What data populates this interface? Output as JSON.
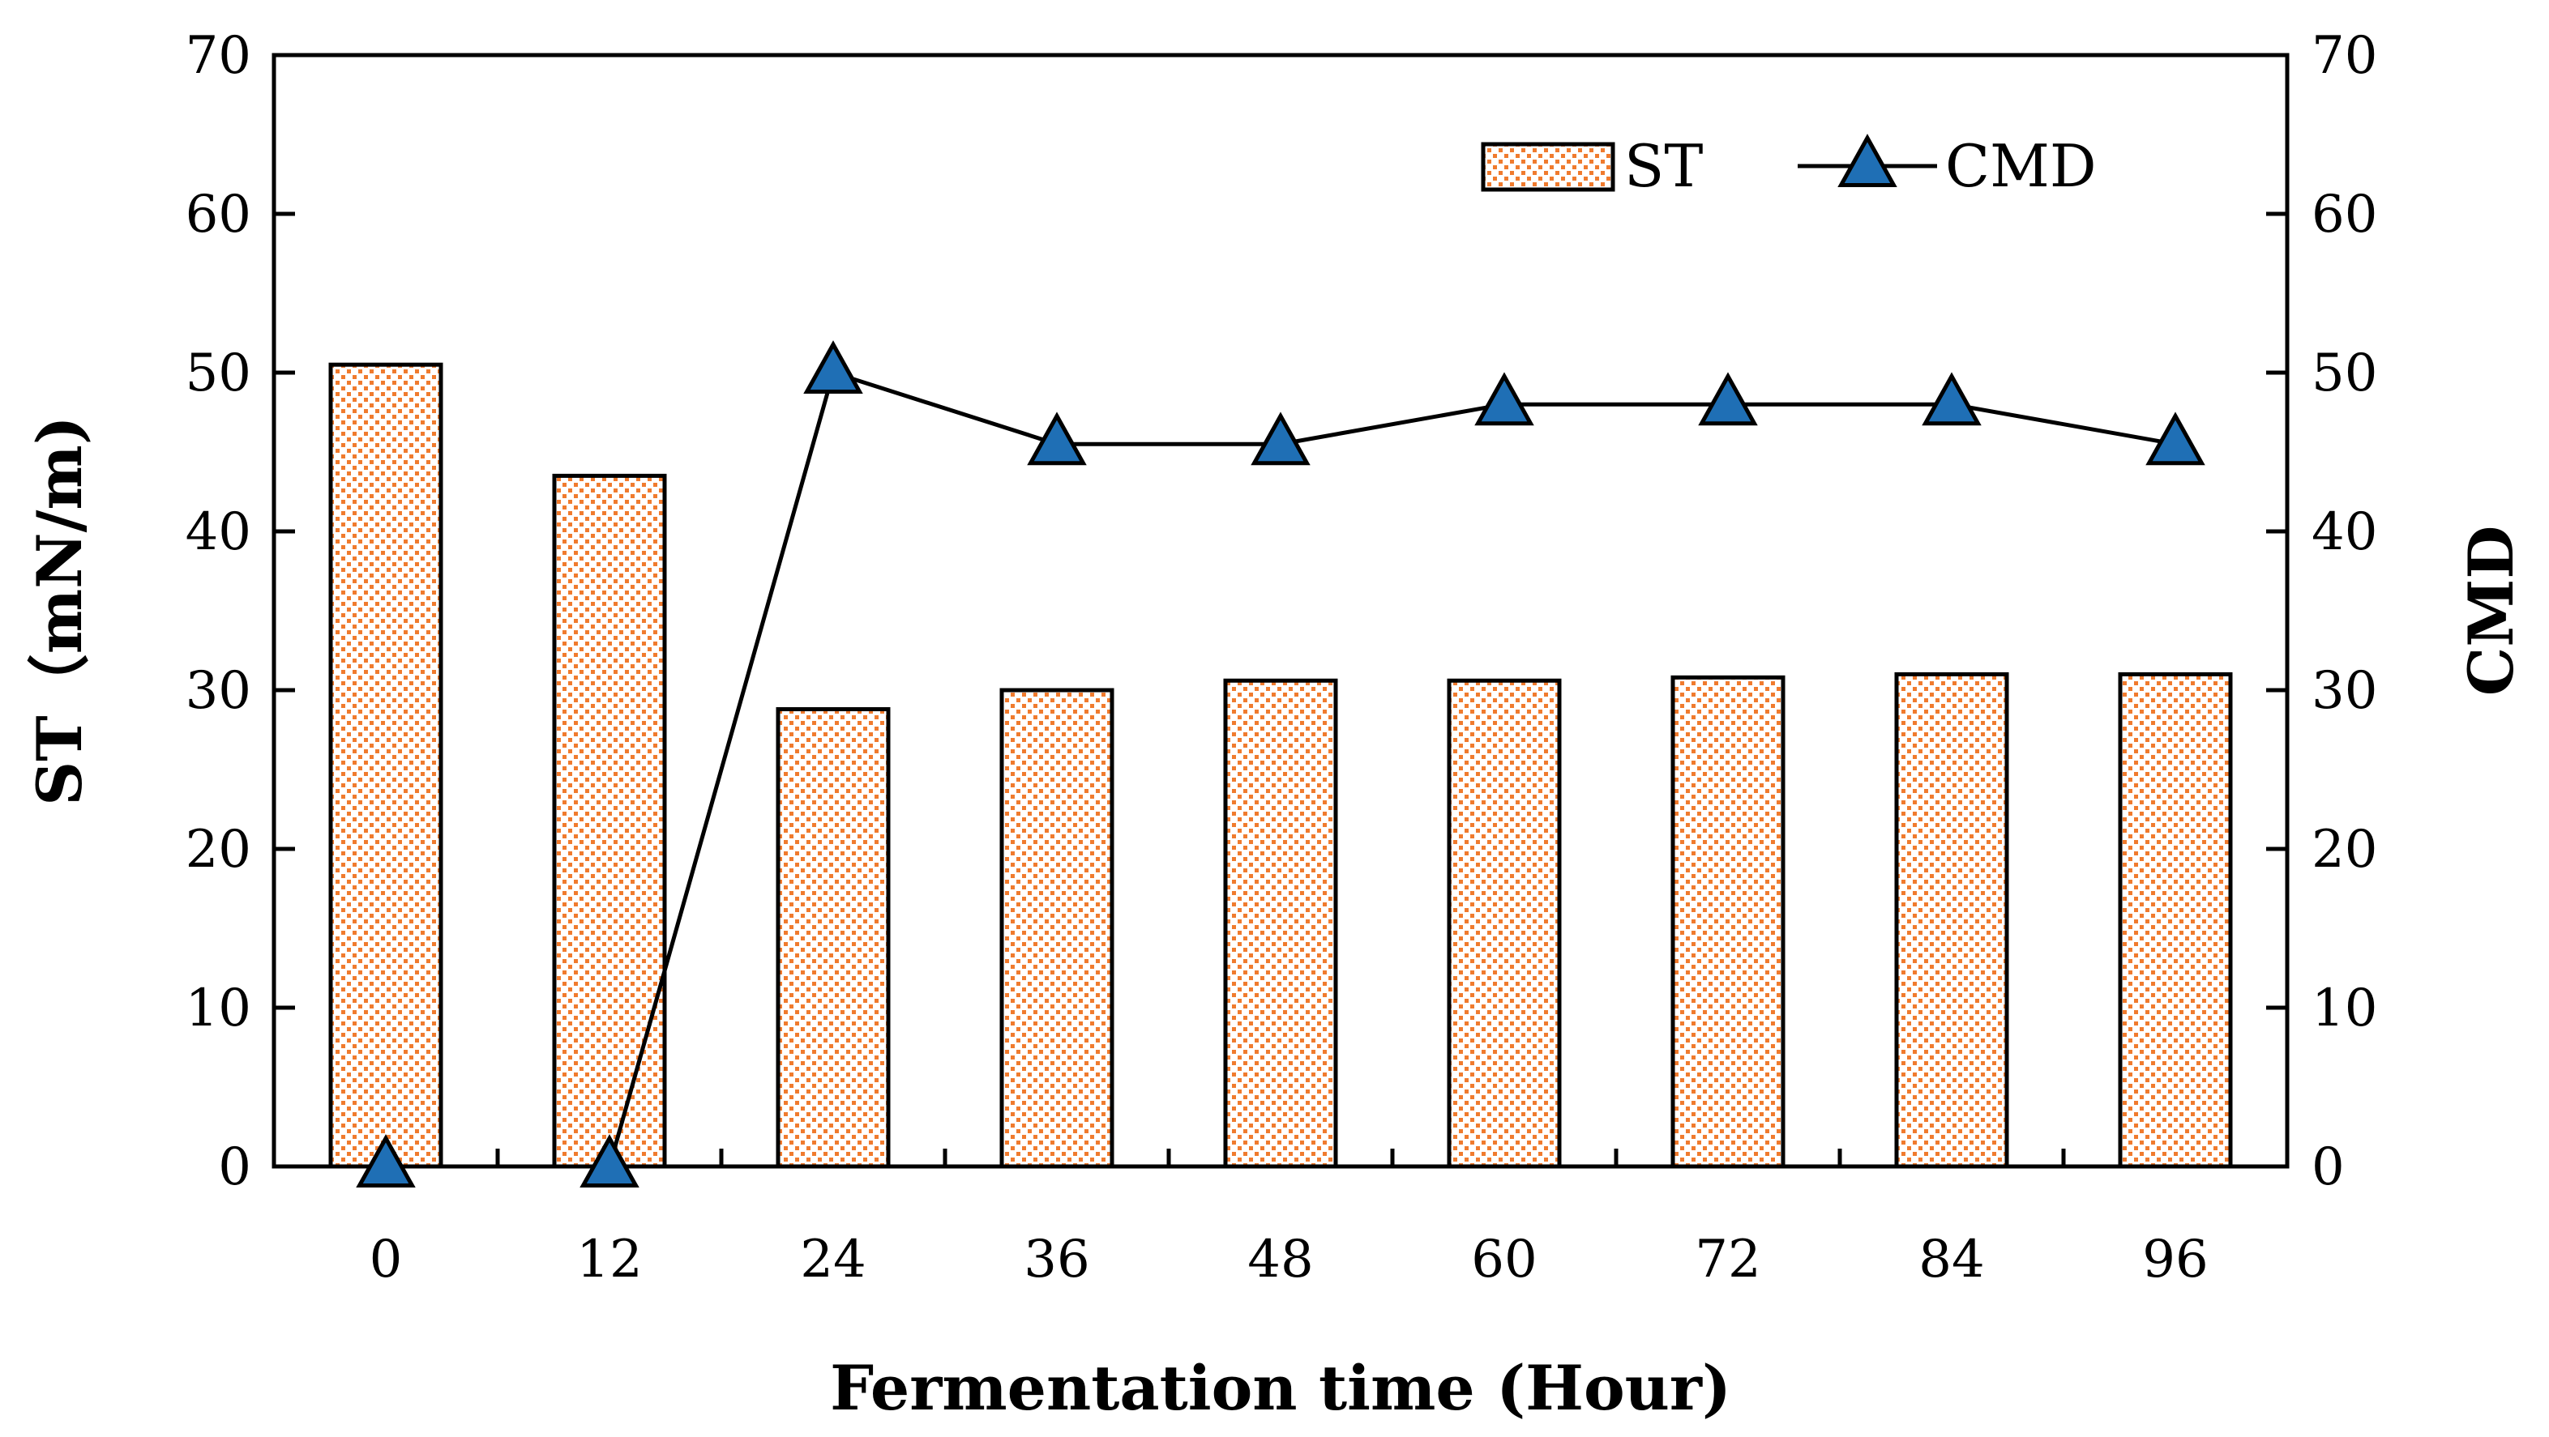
{
  "chart_data": {
    "type": "bar+line",
    "title": "",
    "categories": [
      "0",
      "12",
      "24",
      "36",
      "48",
      "60",
      "72",
      "84",
      "96"
    ],
    "series": [
      {
        "name": "ST",
        "kind": "bar",
        "axis": "left",
        "values": [
          50.5,
          43.5,
          28.8,
          30.0,
          30.6,
          30.6,
          30.8,
          31.0,
          31.0
        ],
        "color": "#f07b2e"
      },
      {
        "name": "CMD",
        "kind": "line",
        "axis": "right",
        "values": [
          0,
          0,
          50,
          45.5,
          45.5,
          48,
          48,
          48,
          45.5
        ],
        "color": "#1f6fb5"
      }
    ],
    "xlabel": "Fermentation time (Hour)",
    "ylabel_left": "ST（mN/m)",
    "ylabel_right": "CMD",
    "ylim_left": [
      0,
      70
    ],
    "ylim_right": [
      0,
      70
    ],
    "yticks": [
      "0",
      "10",
      "20",
      "30",
      "40",
      "50",
      "60",
      "70"
    ],
    "grid": false,
    "legend": {
      "position": "top-right",
      "entries": [
        "ST",
        "CMD"
      ]
    }
  }
}
